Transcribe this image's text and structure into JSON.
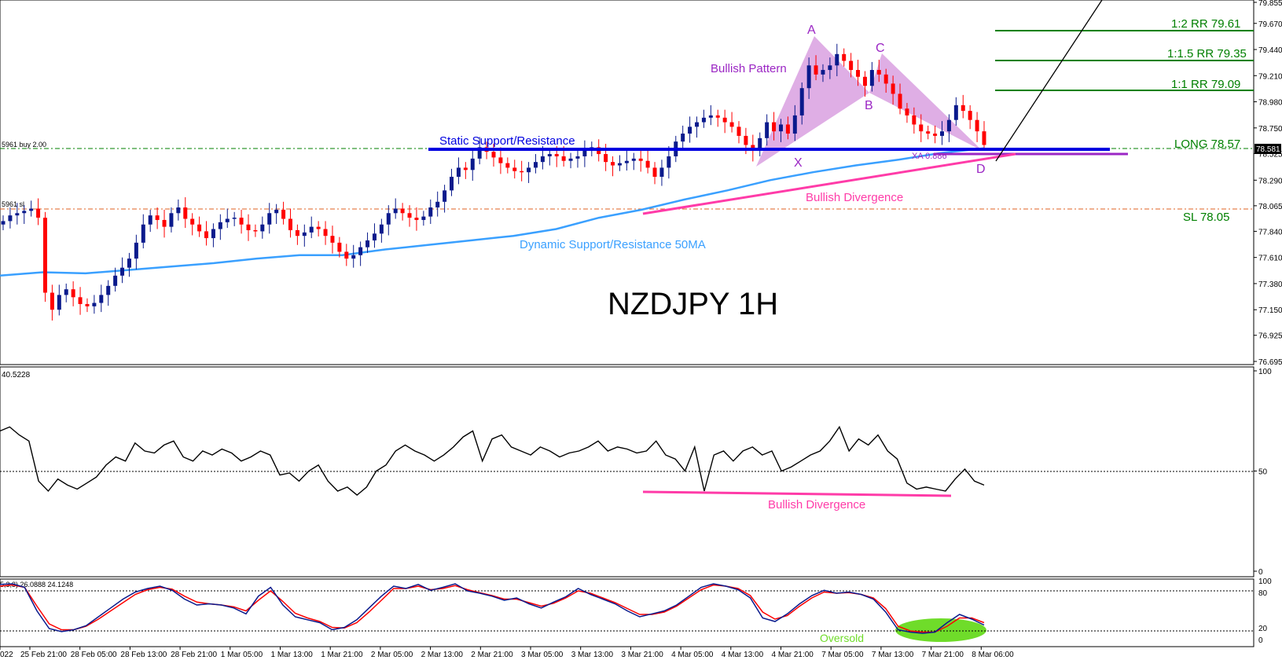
{
  "chart_data": {
    "type": "candlestick",
    "title": "NZDJPY 1H",
    "price_axis": {
      "ylim": [
        76.695,
        79.855
      ],
      "ticks": [
        "79.855",
        "79.670",
        "79.440",
        "79.210",
        "78.980",
        "78.750",
        "78.581",
        "78.525",
        "78.290",
        "78.065",
        "77.840",
        "77.610",
        "77.380",
        "77.150",
        "76.925",
        "76.695"
      ],
      "current_price": "78.581"
    },
    "time_axis": {
      "labels": [
        "022",
        "25 Feb 21:00",
        "28 Feb 05:00",
        "28 Feb 13:00",
        "28 Feb 21:00",
        "1 Mar 05:00",
        "1 Mar 13:00",
        "1 Mar 21:00",
        "2 Mar 05:00",
        "2 Mar 13:00",
        "2 Mar 21:00",
        "3 Mar 05:00",
        "3 Mar 13:00",
        "3 Mar 21:00",
        "4 Mar 05:00",
        "4 Mar 13:00",
        "4 Mar 21:00",
        "7 Mar 05:00",
        "7 Mar 13:00",
        "7 Mar 21:00",
        "8 Mar 06:00"
      ]
    },
    "candles_close": [
      77.93,
      77.98,
      78.0,
      78.02,
      78.04,
      77.96,
      77.3,
      77.15,
      77.28,
      77.33,
      77.26,
      77.2,
      77.18,
      77.21,
      77.28,
      77.36,
      77.45,
      77.52,
      77.6,
      77.74,
      77.9,
      77.98,
      77.94,
      77.88,
      78.0,
      78.05,
      77.95,
      77.9,
      77.84,
      77.78,
      77.86,
      77.92,
      77.95,
      77.96,
      77.9,
      77.85,
      77.84,
      77.9,
      78.0,
      78.03,
      77.95,
      77.85,
      77.8,
      77.83,
      77.88,
      77.86,
      77.8,
      77.74,
      77.66,
      77.6,
      77.63,
      77.7,
      77.76,
      77.82,
      77.9,
      78.0,
      78.04,
      78.0,
      77.96,
      77.94,
      77.97,
      78.05,
      78.1,
      78.2,
      78.32,
      78.4,
      78.38,
      78.48,
      78.58,
      78.54,
      78.49,
      78.44,
      78.4,
      78.37,
      78.36,
      78.4,
      78.45,
      78.5,
      78.52,
      78.5,
      78.46,
      78.48,
      78.5,
      78.55,
      78.58,
      78.52,
      78.45,
      78.42,
      78.44,
      78.46,
      78.48,
      78.46,
      78.4,
      78.32,
      78.4,
      78.5,
      78.63,
      78.7,
      78.76,
      78.8,
      78.84,
      78.86,
      78.84,
      78.8,
      78.76,
      78.68,
      78.6,
      78.55,
      78.66,
      78.8,
      78.72,
      78.78,
      78.7,
      78.86,
      79.1,
      79.3,
      79.22,
      79.26,
      79.3,
      79.4,
      79.34,
      79.26,
      79.2,
      79.12,
      79.26,
      79.22,
      79.14,
      79.05,
      78.92,
      78.86,
      78.78,
      78.72,
      78.7,
      78.68,
      78.72,
      78.82,
      78.95,
      78.9,
      78.82,
      78.72,
      78.6
    ],
    "moving_average_50": [
      77.45,
      77.48,
      77.47,
      77.5,
      77.53,
      77.56,
      77.6,
      77.63,
      77.63,
      77.68,
      77.72,
      77.76,
      77.8,
      77.86,
      77.96,
      78.03,
      78.12,
      78.2,
      78.29,
      78.36,
      78.42,
      78.47,
      78.53,
      78.57
    ],
    "rsi": {
      "range": [
        0,
        100
      ],
      "ticks": [
        "100",
        "50",
        "0"
      ],
      "header_value": "40.5228",
      "values": [
        70,
        72,
        68,
        65,
        45,
        40,
        46,
        43,
        41,
        44,
        47,
        53,
        57,
        55,
        64,
        60,
        59,
        63,
        65,
        57,
        55,
        60,
        58,
        61,
        59,
        55,
        57,
        60,
        58,
        48,
        49,
        45,
        50,
        53,
        45,
        40,
        42,
        38,
        42,
        50,
        53,
        60,
        63,
        60,
        58,
        55,
        58,
        62,
        67,
        70,
        55,
        66,
        68,
        62,
        60,
        58,
        62,
        60,
        57,
        59,
        60,
        62,
        65,
        60,
        62,
        61,
        59,
        60,
        65,
        58,
        56,
        50,
        62,
        40,
        58,
        60,
        55,
        60,
        62,
        58,
        60,
        50,
        52,
        55,
        58,
        60,
        65,
        72,
        60,
        66,
        63,
        68,
        60,
        56,
        44,
        41,
        42,
        41,
        40,
        46,
        51,
        45,
        43
      ],
      "dashed_level": 50
    },
    "stochastic": {
      "range": [
        0,
        100
      ],
      "ticks": [
        "100",
        "80",
        "20",
        "0"
      ],
      "header": "5,3,3) 26.0888 24.1248",
      "levels": [
        80,
        20
      ],
      "main": [
        95,
        96,
        90,
        50,
        20,
        15,
        18,
        25,
        40,
        55,
        70,
        82,
        88,
        92,
        85,
        70,
        60,
        62,
        60,
        55,
        45,
        75,
        90,
        60,
        40,
        35,
        30,
        18,
        22,
        35,
        55,
        75,
        92,
        88,
        95,
        85,
        90,
        96,
        84,
        80,
        75,
        68,
        72,
        62,
        55,
        65,
        74,
        88,
        78,
        70,
        62,
        50,
        40,
        45,
        50,
        60,
        75,
        90,
        96,
        92,
        86,
        72,
        38,
        32,
        45,
        62,
        76,
        85,
        80,
        82,
        78,
        70,
        48,
        18,
        14,
        12,
        14,
        30,
        44,
        36,
        26
      ],
      "signal": [
        92,
        94,
        90,
        58,
        28,
        18,
        18,
        24,
        36,
        50,
        64,
        78,
        86,
        90,
        87,
        75,
        65,
        62,
        60,
        57,
        50,
        68,
        84,
        66,
        46,
        38,
        32,
        22,
        21,
        30,
        48,
        68,
        88,
        88,
        92,
        86,
        88,
        93,
        86,
        81,
        76,
        70,
        70,
        64,
        58,
        63,
        72,
        84,
        80,
        72,
        64,
        54,
        44,
        44,
        48,
        58,
        72,
        86,
        94,
        92,
        88,
        76,
        48,
        36,
        42,
        58,
        72,
        82,
        80,
        81,
        78,
        72,
        54,
        24,
        16,
        14,
        14,
        24,
        38,
        38,
        30
      ]
    },
    "annotations": {
      "title": "NZDJPY 1H",
      "bullish_pattern": "Bullish Pattern",
      "points": {
        "X": "X",
        "A": "A",
        "B": "B",
        "C": "C",
        "D": "D"
      },
      "static_sr": "Static Support/Resistance",
      "dynamic_sr": "Dynamic Support/Resistance 50MA",
      "bullish_divergence_price": "Bullish Divergence",
      "bullish_divergence_rsi": "Bullish Divergence",
      "xa": "XA 0.886",
      "long": "LONG 78.57",
      "sl": "SL 78.05",
      "rr1": "1:1 RR 79.09",
      "rr15": "1:1.5 RR 79.35",
      "rr2": "1:2 RR 79.61",
      "buy_label": "5961 buy 2.00",
      "sl_label": "5961 sl",
      "oversold": "Oversold"
    },
    "colors": {
      "bull_candle": "#0a1a8c",
      "bear_candle": "#ff0000",
      "ma": "#3aa0ff",
      "static_line": "#0000e0",
      "pattern_fill": "#d9a0e0",
      "divergence": "#ff3ba8",
      "target_line": "#008000",
      "purple_text": "#9b26c4",
      "oversold_fill": "#6fdc2a"
    }
  }
}
